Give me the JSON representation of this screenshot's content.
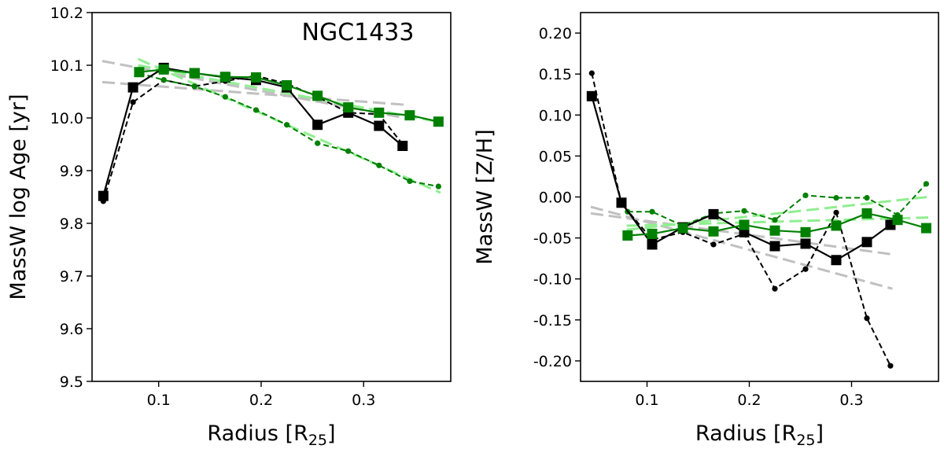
{
  "chart_data": [
    {
      "type": "line",
      "annotation": "NGC1433",
      "xlabel": "Radius [R",
      "xlabel_sub": "25",
      "xlabel_end": "]",
      "ylabel": "MassW log Age [yr]",
      "xlim": [
        0.035,
        0.385
      ],
      "ylim": [
        9.5,
        10.2
      ],
      "xticks": [
        0.1,
        0.2,
        0.3
      ],
      "xtick_labels": [
        "0.1",
        "0.2",
        "0.3"
      ],
      "yticks": [
        9.5,
        9.6,
        9.7,
        9.8,
        9.9,
        10.0,
        10.1,
        10.2
      ],
      "ytick_labels": [
        "9.5",
        "9.6",
        "9.7",
        "9.8",
        "9.9",
        "10.0",
        "10.1",
        "10.2"
      ],
      "series": [
        {
          "name": "black-solid",
          "color": "#000000",
          "style": "solid",
          "marker": "square",
          "x": [
            0.046,
            0.075,
            0.105,
            0.135,
            0.165,
            0.195,
            0.225,
            0.255,
            0.285,
            0.315,
            0.338
          ],
          "y": [
            9.852,
            10.058,
            10.095,
            10.085,
            10.077,
            10.072,
            10.058,
            9.987,
            10.01,
            9.985,
            9.947
          ]
        },
        {
          "name": "black-dashed",
          "color": "#000000",
          "style": "dashed",
          "marker": "dot",
          "x": [
            0.046,
            0.075,
            0.105,
            0.135,
            0.165,
            0.195,
            0.225,
            0.255,
            0.285,
            0.315,
            0.338
          ],
          "y": [
            9.842,
            10.03,
            10.072,
            10.06,
            10.07,
            10.08,
            10.065,
            10.04,
            10.01,
            10.007,
            9.95
          ]
        },
        {
          "name": "green-solid",
          "color": "#008000",
          "style": "solid",
          "marker": "square",
          "x": [
            0.081,
            0.105,
            0.135,
            0.165,
            0.195,
            0.225,
            0.255,
            0.285,
            0.315,
            0.345,
            0.373
          ],
          "y": [
            10.087,
            10.092,
            10.085,
            10.078,
            10.077,
            10.062,
            10.042,
            10.02,
            10.01,
            10.005,
            9.993
          ]
        },
        {
          "name": "green-dashed",
          "color": "#008000",
          "style": "dashed",
          "marker": "dot",
          "x": [
            0.081,
            0.105,
            0.135,
            0.165,
            0.195,
            0.225,
            0.255,
            0.285,
            0.315,
            0.345,
            0.373
          ],
          "y": [
            10.085,
            10.072,
            10.06,
            10.04,
            10.015,
            9.987,
            9.952,
            9.937,
            9.91,
            9.88,
            9.87
          ]
        },
        {
          "name": "gray-fit-1",
          "color": "#c0c0c0",
          "style": "fit",
          "marker": "none",
          "x": [
            0.045,
            0.34
          ],
          "y": [
            10.108,
            10.0
          ]
        },
        {
          "name": "gray-fit-2",
          "color": "#c0c0c0",
          "style": "fit",
          "marker": "none",
          "x": [
            0.045,
            0.34
          ],
          "y": [
            10.068,
            10.025
          ]
        },
        {
          "name": "lightgreen-fit-1",
          "color": "#90ee90",
          "style": "fit",
          "marker": "none",
          "x": [
            0.08,
            0.375
          ],
          "y": [
            10.112,
            9.858
          ]
        },
        {
          "name": "lightgreen-fit-2",
          "color": "#90ee90",
          "style": "fit",
          "marker": "none",
          "x": [
            0.08,
            0.375
          ],
          "y": [
            10.1,
            9.992
          ]
        }
      ]
    },
    {
      "type": "line",
      "xlabel": "Radius [R",
      "xlabel_sub": "25",
      "xlabel_end": "]",
      "ylabel": "MassW [Z/H]",
      "xlim": [
        0.035,
        0.385
      ],
      "ylim": [
        -0.225,
        0.225
      ],
      "xticks": [
        0.1,
        0.2,
        0.3
      ],
      "xtick_labels": [
        "0.1",
        "0.2",
        "0.3"
      ],
      "yticks": [
        -0.2,
        -0.15,
        -0.1,
        -0.05,
        0.0,
        0.05,
        0.1,
        0.15,
        0.2
      ],
      "ytick_labels": [
        "-0.20",
        "-0.15",
        "-0.10",
        "-0.05",
        "0.00",
        "0.05",
        "0.10",
        "0.15",
        "0.20"
      ],
      "series": [
        {
          "name": "black-solid",
          "color": "#000000",
          "style": "solid",
          "marker": "square",
          "x": [
            0.046,
            0.075,
            0.105,
            0.135,
            0.165,
            0.195,
            0.225,
            0.255,
            0.285,
            0.315,
            0.338
          ],
          "y": [
            0.123,
            -0.007,
            -0.058,
            -0.037,
            -0.021,
            -0.043,
            -0.06,
            -0.057,
            -0.077,
            -0.055,
            -0.034
          ]
        },
        {
          "name": "black-dashed",
          "color": "#000000",
          "style": "dashed",
          "marker": "dot",
          "x": [
            0.046,
            0.075,
            0.105,
            0.135,
            0.165,
            0.195,
            0.225,
            0.255,
            0.285,
            0.315,
            0.338
          ],
          "y": [
            0.151,
            -0.008,
            -0.052,
            -0.043,
            -0.058,
            -0.045,
            -0.112,
            -0.088,
            -0.019,
            -0.148,
            -0.206
          ]
        },
        {
          "name": "green-solid",
          "color": "#008000",
          "style": "solid",
          "marker": "square",
          "x": [
            0.081,
            0.105,
            0.135,
            0.165,
            0.195,
            0.225,
            0.255,
            0.285,
            0.315,
            0.345,
            0.373
          ],
          "y": [
            -0.047,
            -0.045,
            -0.038,
            -0.042,
            -0.034,
            -0.041,
            -0.043,
            -0.035,
            -0.02,
            -0.028,
            -0.038
          ]
        },
        {
          "name": "green-dashed",
          "color": "#008000",
          "style": "dashed",
          "marker": "dot",
          "x": [
            0.081,
            0.105,
            0.135,
            0.165,
            0.195,
            0.225,
            0.255,
            0.285,
            0.315,
            0.345,
            0.373
          ],
          "y": [
            -0.018,
            -0.018,
            -0.035,
            -0.02,
            -0.017,
            -0.028,
            0.002,
            -0.001,
            -0.001,
            -0.022,
            0.016
          ]
        },
        {
          "name": "gray-fit-1",
          "color": "#c0c0c0",
          "style": "fit",
          "marker": "none",
          "x": [
            0.045,
            0.34
          ],
          "y": [
            -0.012,
            -0.112
          ]
        },
        {
          "name": "gray-fit-2",
          "color": "#c0c0c0",
          "style": "fit",
          "marker": "none",
          "x": [
            0.045,
            0.34
          ],
          "y": [
            -0.02,
            -0.07
          ]
        },
        {
          "name": "lightgreen-fit-1",
          "color": "#90ee90",
          "style": "fit",
          "marker": "none",
          "x": [
            0.08,
            0.375
          ],
          "y": [
            -0.04,
            0.0
          ]
        },
        {
          "name": "lightgreen-fit-2",
          "color": "#90ee90",
          "style": "fit",
          "marker": "none",
          "x": [
            0.08,
            0.375
          ],
          "y": [
            -0.035,
            -0.025
          ]
        }
      ]
    }
  ]
}
